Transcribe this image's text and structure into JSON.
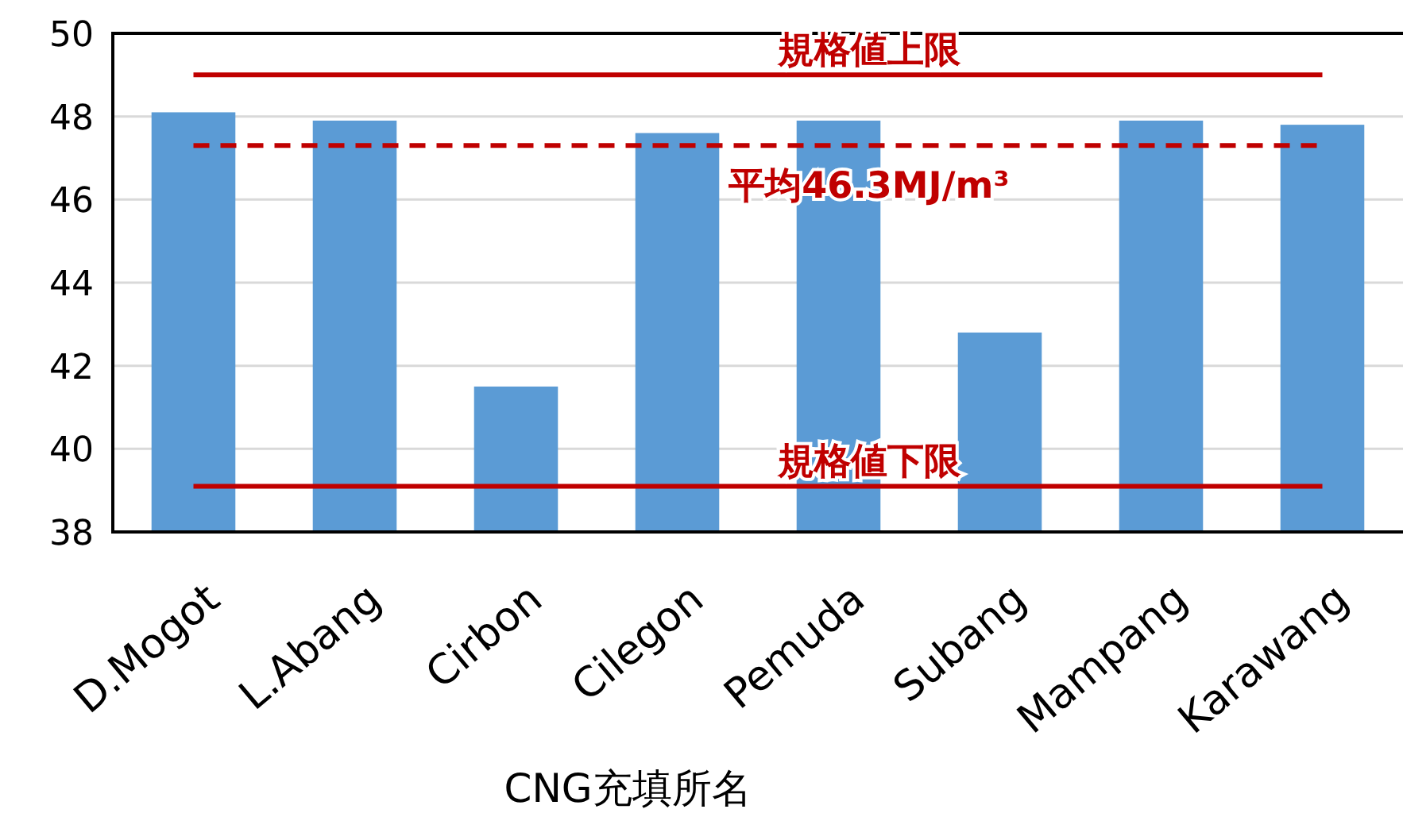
{
  "chart_data": {
    "type": "bar",
    "xlabel": "CNG充填所名",
    "categories": [
      "D.Mogot",
      "L.Abang",
      "Cirbon",
      "Cilegon",
      "Pemuda",
      "Subang",
      "Mampang",
      "Karawang"
    ],
    "values": [
      48.1,
      47.9,
      41.5,
      47.6,
      47.9,
      42.8,
      47.9,
      47.8
    ],
    "color": "#5b9bd5",
    "ylim": [
      38,
      50
    ],
    "yticks": [
      38,
      40,
      42,
      44,
      46,
      48,
      50
    ],
    "grid": "y",
    "ref_lines": [
      {
        "axis": "y",
        "value": 49.0,
        "label": "規格値上限",
        "color": "#c00000",
        "line_style": "solid"
      },
      {
        "axis": "y",
        "value": 47.3,
        "label": "平均46.3MJ/m³",
        "color": "#c00000",
        "line_style": "dashed"
      },
      {
        "axis": "y",
        "value": 39.1,
        "label": "規格値下限",
        "color": "#c00000",
        "line_style": "solid"
      }
    ]
  }
}
